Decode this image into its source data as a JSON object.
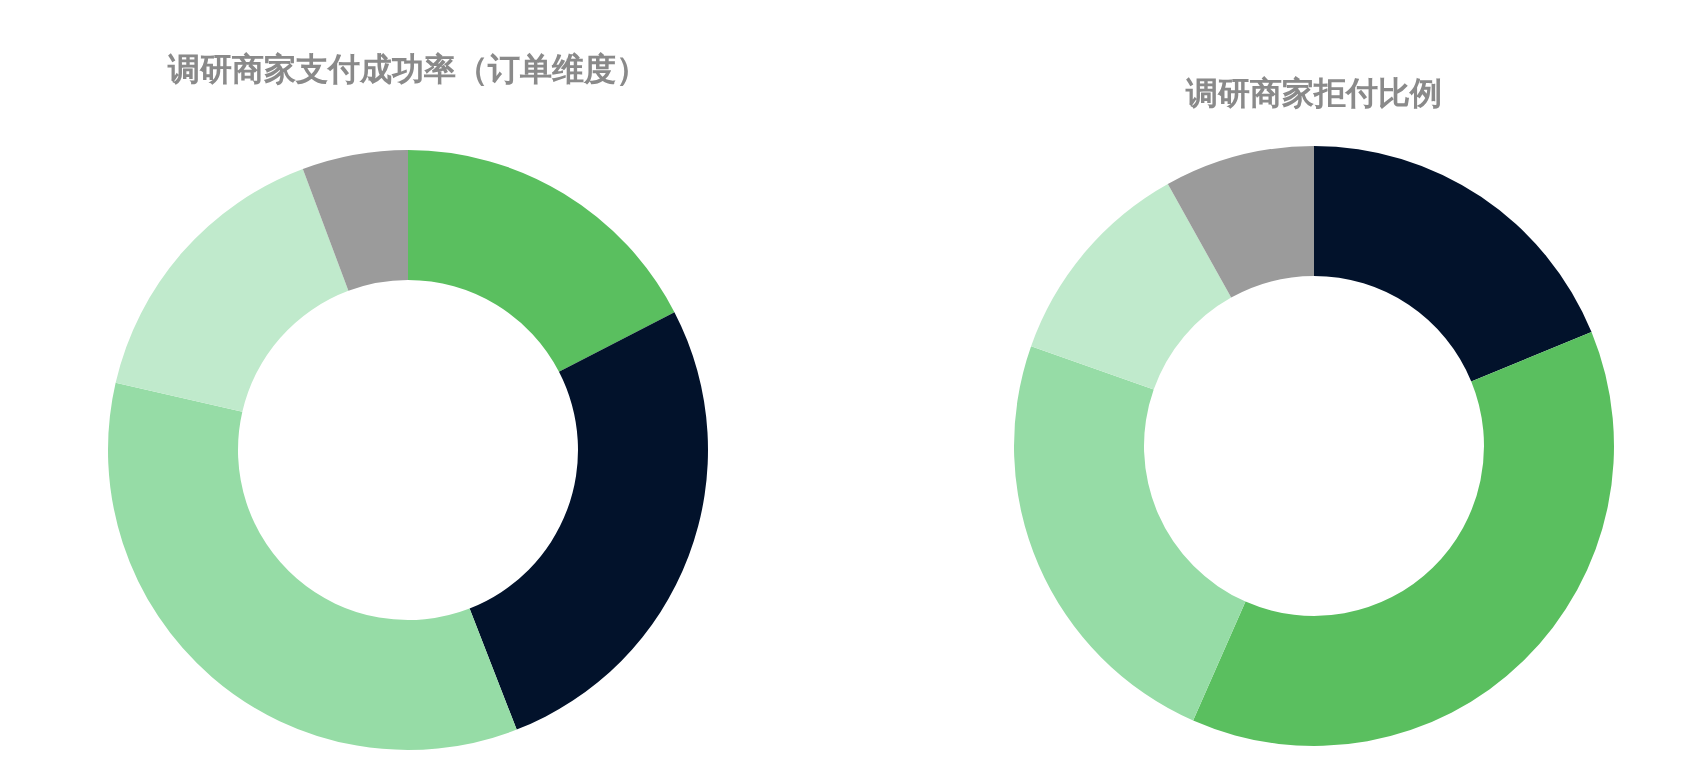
{
  "chart_data": [
    {
      "type": "donut",
      "title": "调研商家支付成功率（订单维度）",
      "categories": [
        null,
        null,
        null,
        null,
        null
      ],
      "values": [
        17.4,
        26.7,
        34.5,
        15.7,
        5.7
      ],
      "colors": [
        "#5abf5f",
        "#02122b",
        "#96dca6",
        "#c0eacc",
        "#9b9b9b"
      ]
    },
    {
      "type": "donut",
      "title": "调研商家拒付比例",
      "categories": [
        null,
        null,
        null,
        null,
        null
      ],
      "values": [
        18.8,
        37.8,
        23.8,
        11.5,
        8.1
      ],
      "colors": [
        "#02122b",
        "#5abf5f",
        "#96dca6",
        "#c0eacc",
        "#9b9b9b"
      ]
    }
  ]
}
